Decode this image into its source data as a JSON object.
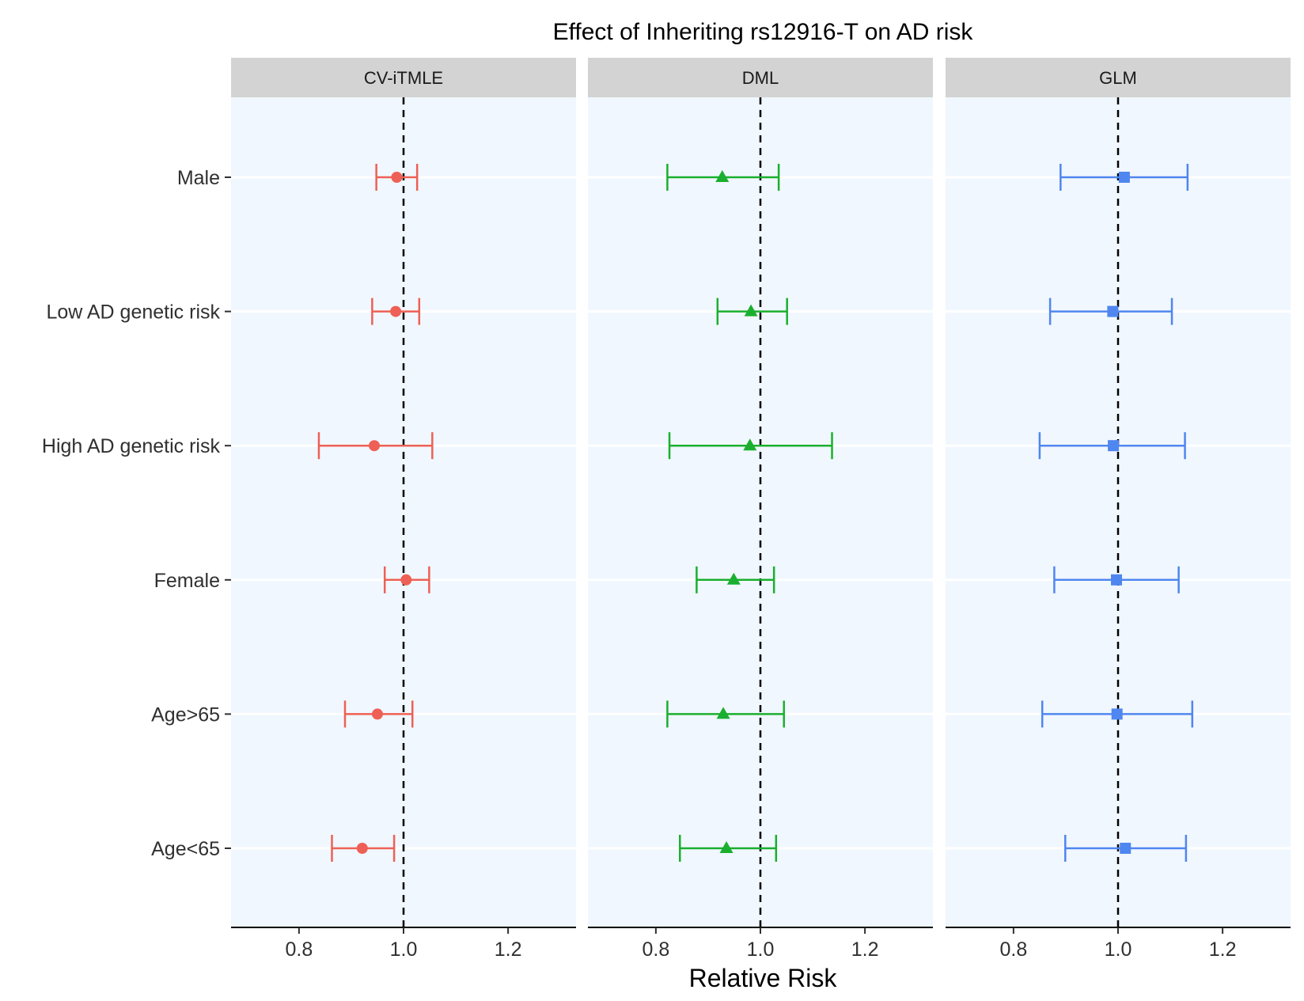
{
  "chart_data": {
    "type": "scatter",
    "title": "Effect of Inheriting rs12916-T on AD risk",
    "xlabel": "Relative Risk",
    "ylabel": "",
    "xlim": [
      0.67,
      1.33
    ],
    "x_ticks": [
      0.8,
      1.0,
      1.2
    ],
    "x_tick_labels": [
      "0.8",
      "1.0",
      "1.2"
    ],
    "reference_line_x": 1.0,
    "categories": [
      "Male",
      "Low AD genetic risk",
      "High AD genetic risk",
      "Female",
      "Age>65",
      "Age<65"
    ],
    "panel_background": "#f0f7fe",
    "strip_background": "#d3d3d3",
    "series": [
      {
        "name": "CV-iTMLE",
        "color": "#ee6055",
        "marker": "circle",
        "estimates": [
          0.987,
          0.985,
          0.944,
          1.005,
          0.95,
          0.921
        ],
        "lower": [
          0.948,
          0.94,
          0.838,
          0.964,
          0.888,
          0.863
        ],
        "upper": [
          1.026,
          1.03,
          1.055,
          1.049,
          1.017,
          0.982
        ]
      },
      {
        "name": "DML",
        "color": "#1aaf2e",
        "marker": "triangle",
        "estimates": [
          0.927,
          0.982,
          0.98,
          0.949,
          0.929,
          0.935
        ],
        "lower": [
          0.822,
          0.918,
          0.826,
          0.878,
          0.822,
          0.846
        ],
        "upper": [
          1.035,
          1.051,
          1.137,
          1.026,
          1.045,
          1.03
        ]
      },
      {
        "name": "GLM",
        "color": "#4f86f0",
        "marker": "square",
        "estimates": [
          1.012,
          0.99,
          0.991,
          0.997,
          0.998,
          1.014
        ],
        "lower": [
          0.89,
          0.87,
          0.85,
          0.878,
          0.855,
          0.899
        ],
        "upper": [
          1.133,
          1.103,
          1.128,
          1.116,
          1.142,
          1.13
        ]
      }
    ]
  }
}
